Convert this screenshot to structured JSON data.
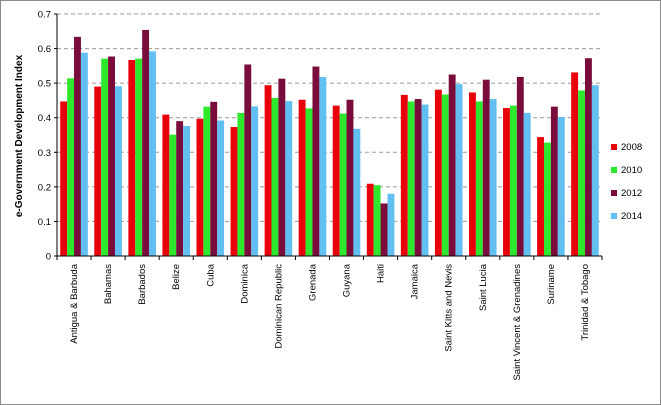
{
  "chart_data": {
    "type": "bar",
    "title": "",
    "xlabel": "",
    "ylabel": "e-Government  Development Index",
    "ylim": [
      0,
      0.7
    ],
    "yticks": [
      "0",
      "0.1",
      "0.2",
      "0.3",
      "0.4",
      "0.5",
      "0.6",
      "0.7"
    ],
    "grid": true,
    "legend_position": "right",
    "categories": [
      "Antigua & Barbuda",
      "Bahamas",
      "Barbados",
      "Belize",
      "Cuba",
      "Dominica",
      "Dominican Republic",
      "Grenada",
      "Guyana",
      "Haiti",
      "Jamaica",
      "Saint Kitts and Nevis",
      "Saint Lucia",
      "Saint Vincent & Grenadines",
      "Suriname",
      "Trinidad & Tobago"
    ],
    "series": [
      {
        "name": "2008",
        "color": "#e8000b",
        "values": [
          0.447,
          0.49,
          0.567,
          0.409,
          0.397,
          0.373,
          0.494,
          0.452,
          0.435,
          0.209,
          0.466,
          0.481,
          0.473,
          0.428,
          0.344,
          0.531
        ]
      },
      {
        "name": "2010",
        "color": "#2ee82e",
        "values": [
          0.514,
          0.571,
          0.571,
          0.351,
          0.432,
          0.414,
          0.457,
          0.427,
          0.412,
          0.205,
          0.447,
          0.467,
          0.447,
          0.435,
          0.328,
          0.479
        ]
      },
      {
        "name": "2012",
        "color": "#7a0c3c",
        "values": [
          0.634,
          0.577,
          0.654,
          0.39,
          0.446,
          0.554,
          0.513,
          0.548,
          0.452,
          0.152,
          0.454,
          0.525,
          0.51,
          0.518,
          0.432,
          0.572
        ]
      },
      {
        "name": "2014",
        "color": "#62bff2",
        "values": [
          0.588,
          0.491,
          0.592,
          0.376,
          0.392,
          0.433,
          0.448,
          0.518,
          0.368,
          0.18,
          0.438,
          0.497,
          0.454,
          0.414,
          0.402,
          0.494
        ]
      }
    ]
  }
}
